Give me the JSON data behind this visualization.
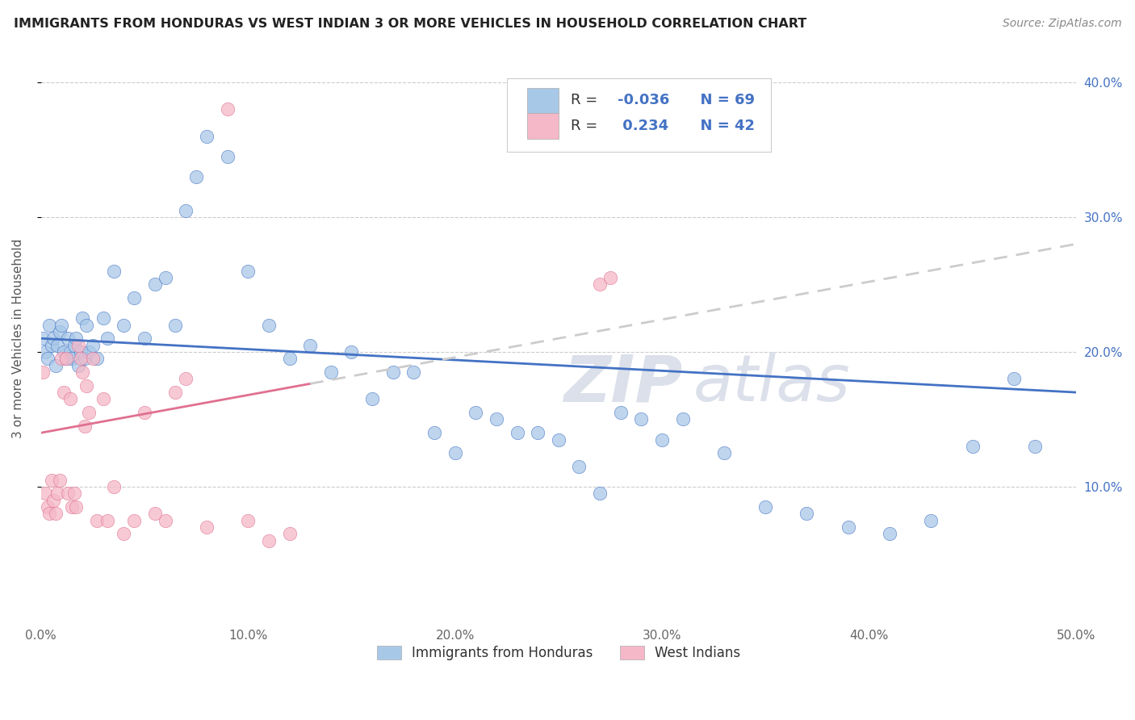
{
  "title": "IMMIGRANTS FROM HONDURAS VS WEST INDIAN 3 OR MORE VEHICLES IN HOUSEHOLD CORRELATION CHART",
  "source": "Source: ZipAtlas.com",
  "ylabel": "3 or more Vehicles in Household",
  "legend1_label": "Immigrants from Honduras",
  "legend2_label": "West Indians",
  "R1": "-0.036",
  "N1": "69",
  "R2": "0.234",
  "N2": "42",
  "color_blue": "#a8c8e8",
  "color_pink": "#f5b8c8",
  "color_blue_line": "#4472c4",
  "color_pink_line": "#e07090",
  "watermark_color": "#d8dde8",
  "blue_x": [
    0.1,
    0.2,
    0.3,
    0.4,
    0.5,
    0.6,
    0.7,
    0.8,
    0.9,
    1.0,
    1.1,
    1.2,
    1.3,
    1.4,
    1.5,
    1.6,
    1.7,
    1.8,
    1.9,
    2.0,
    2.1,
    2.2,
    2.3,
    2.5,
    2.7,
    3.0,
    3.2,
    3.5,
    4.0,
    4.5,
    5.0,
    5.5,
    6.0,
    6.5,
    7.0,
    7.5,
    8.0,
    9.0,
    10.0,
    11.0,
    12.0,
    13.0,
    14.0,
    15.0,
    16.0,
    17.0,
    18.0,
    19.0,
    20.0,
    21.0,
    22.0,
    23.0,
    24.0,
    25.0,
    26.0,
    27.0,
    28.0,
    29.0,
    30.0,
    31.0,
    33.0,
    35.0,
    37.0,
    39.0,
    41.0,
    43.0,
    45.0,
    47.0,
    48.0
  ],
  "blue_y": [
    21.0,
    20.0,
    19.5,
    22.0,
    20.5,
    21.0,
    19.0,
    20.5,
    21.5,
    22.0,
    20.0,
    19.5,
    21.0,
    20.0,
    19.5,
    20.5,
    21.0,
    19.0,
    20.0,
    22.5,
    19.5,
    22.0,
    20.0,
    20.5,
    19.5,
    22.5,
    21.0,
    26.0,
    22.0,
    24.0,
    21.0,
    25.0,
    25.5,
    22.0,
    30.5,
    33.0,
    36.0,
    34.5,
    26.0,
    22.0,
    19.5,
    20.5,
    18.5,
    20.0,
    16.5,
    18.5,
    18.5,
    14.0,
    12.5,
    15.5,
    15.0,
    14.0,
    14.0,
    13.5,
    11.5,
    9.5,
    15.5,
    15.0,
    13.5,
    15.0,
    12.5,
    8.5,
    8.0,
    7.0,
    6.5,
    7.5,
    13.0,
    18.0,
    13.0
  ],
  "pink_x": [
    0.1,
    0.2,
    0.3,
    0.4,
    0.5,
    0.6,
    0.7,
    0.8,
    0.9,
    1.0,
    1.1,
    1.2,
    1.3,
    1.4,
    1.5,
    1.6,
    1.7,
    1.8,
    1.9,
    2.0,
    2.1,
    2.2,
    2.3,
    2.5,
    2.7,
    3.0,
    3.2,
    3.5,
    4.0,
    4.5,
    5.0,
    5.5,
    6.0,
    6.5,
    7.0,
    8.0,
    9.0,
    10.0,
    11.0,
    12.0,
    27.0,
    27.5
  ],
  "pink_y": [
    18.5,
    9.5,
    8.5,
    8.0,
    10.5,
    9.0,
    8.0,
    9.5,
    10.5,
    19.5,
    17.0,
    19.5,
    9.5,
    16.5,
    8.5,
    9.5,
    8.5,
    20.5,
    19.5,
    18.5,
    14.5,
    17.5,
    15.5,
    19.5,
    7.5,
    16.5,
    7.5,
    10.0,
    6.5,
    7.5,
    15.5,
    8.0,
    7.5,
    17.0,
    18.0,
    7.0,
    38.0,
    7.5,
    6.0,
    6.5,
    25.0,
    25.5
  ],
  "xlim": [
    0,
    50
  ],
  "ylim": [
    0,
    42
  ],
  "xticks": [
    0,
    10,
    20,
    30,
    40,
    50
  ],
  "yticks": [
    10,
    20,
    30,
    40
  ],
  "xticklabels": [
    "0.0%",
    "10.0%",
    "20.0%",
    "30.0%",
    "40.0%",
    "50.0%"
  ],
  "yticklabels_right": [
    "10.0%",
    "20.0%",
    "30.0%",
    "40.0%"
  ]
}
